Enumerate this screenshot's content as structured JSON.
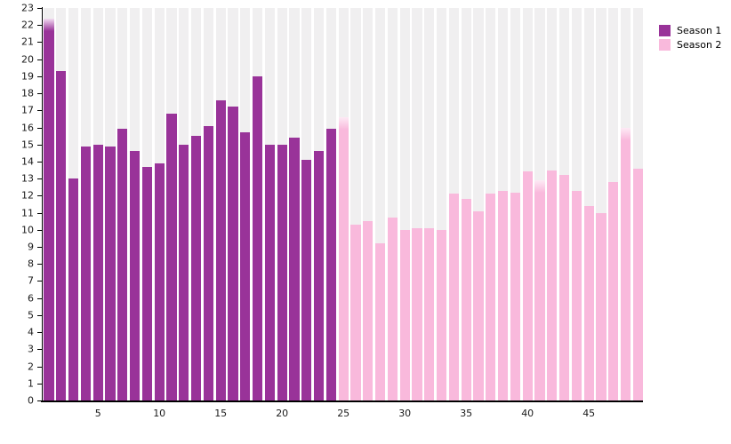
{
  "chart_data": {
    "type": "bar",
    "title": "",
    "xlabel": "",
    "ylabel": "",
    "description": "Episode-by-episode bar chart, episodes numbered continuously across two seasons",
    "ylim": [
      0,
      23
    ],
    "y_ticks": [
      0,
      1,
      2,
      3,
      4,
      5,
      6,
      7,
      8,
      9,
      10,
      11,
      12,
      13,
      14,
      15,
      16,
      17,
      18,
      19,
      20,
      21,
      22,
      23
    ],
    "x_tick_labels": [
      "5",
      "10",
      "15",
      "20",
      "25",
      "30",
      "35",
      "40",
      "45"
    ],
    "x_tick_positions": [
      5,
      10,
      15,
      20,
      25,
      30,
      35,
      40,
      45
    ],
    "grid": "none",
    "background_column_stripes": true,
    "legend_position": "top-right",
    "series": [
      {
        "name": "Season 1",
        "color": "#993399",
        "fade_light_color": "#f2ddf1",
        "first_episode": 1,
        "values": [
          22.4,
          19.3,
          13.0,
          14.9,
          15.0,
          14.9,
          15.9,
          14.6,
          13.7,
          13.9,
          16.8,
          15.0,
          15.5,
          16.1,
          17.6,
          17.2,
          15.7,
          19.0,
          15.0,
          15.0,
          15.4,
          14.1,
          14.6,
          15.9
        ]
      },
      {
        "name": "Season 2",
        "color": "#f9b9dc",
        "fade_light_color": "#fdeaf5",
        "first_episode": 25,
        "values": [
          16.6,
          10.3,
          10.5,
          9.2,
          10.7,
          10.0,
          10.1,
          10.1,
          10.0,
          12.1,
          11.8,
          11.1,
          12.1,
          12.3,
          12.2,
          13.4,
          12.9,
          13.5,
          13.2,
          12.3,
          11.4,
          11.0,
          12.8,
          16.0,
          13.6
        ]
      }
    ],
    "highlight_fade_episodes": [
      1,
      25,
      41,
      48
    ]
  },
  "colors": {
    "season1": "#993399",
    "season2": "#f9b9dc",
    "column_stripe": "#f0eff0",
    "axis": "#000000",
    "tick_text": "#1a1a1a",
    "background": "#ffffff"
  },
  "legend": {
    "items": [
      {
        "label": "Season 1",
        "color": "#993399"
      },
      {
        "label": "Season 2",
        "color": "#f9b9dc"
      }
    ]
  }
}
